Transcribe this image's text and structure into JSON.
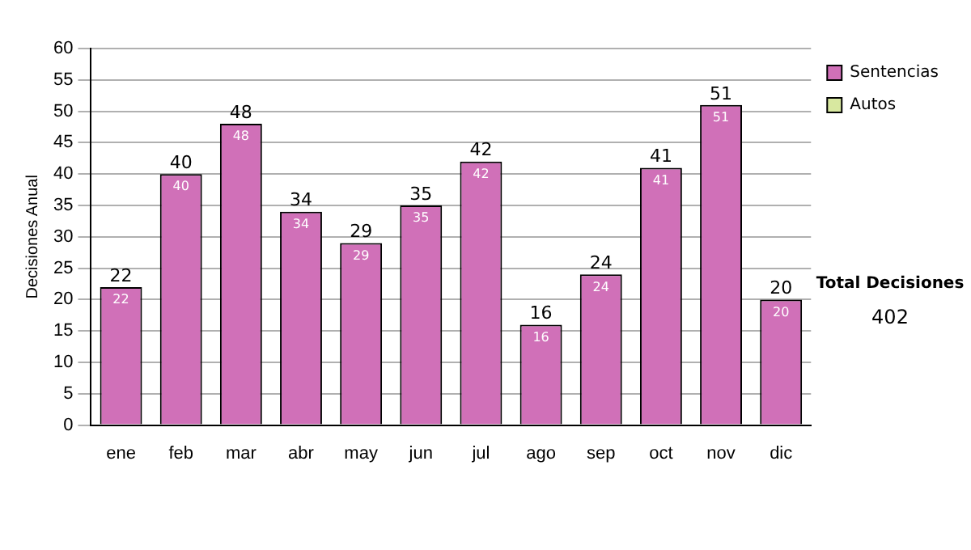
{
  "chart_data": {
    "type": "bar",
    "ylabel": "Decisiones Anual",
    "categories": [
      "ene",
      "feb",
      "mar",
      "abr",
      "may",
      "jun",
      "jul",
      "ago",
      "sep",
      "oct",
      "nov",
      "dic"
    ],
    "series": [
      {
        "name": "Sentencias",
        "color": "#d070b8",
        "values": [
          22,
          40,
          48,
          34,
          29,
          35,
          42,
          16,
          24,
          41,
          51,
          20
        ],
        "value_labels": [
          "22",
          "40",
          "48",
          "34",
          "29",
          "35",
          "42",
          "16",
          "24",
          "41",
          "51",
          "20"
        ]
      },
      {
        "name": "Autos",
        "color": "#d8e8a0",
        "values": [
          null,
          null,
          null,
          null,
          null,
          null,
          null,
          null,
          null,
          null,
          null,
          null
        ]
      }
    ],
    "ylim": [
      0,
      60
    ],
    "yticks": [
      0,
      5,
      10,
      15,
      20,
      25,
      30,
      35,
      40,
      45,
      50,
      55,
      60
    ],
    "grid": "y",
    "legend": "right",
    "annotations": [
      "Total Decisiones",
      "402",
      {
        "text": "22",
        "x": "ene",
        "y": 22
      },
      {
        "text": "40",
        "x": "feb",
        "y": 40
      },
      {
        "text": "48",
        "x": "mar",
        "y": 48
      },
      {
        "text": "34",
        "x": "abr",
        "y": 34
      },
      {
        "text": "29",
        "x": "may",
        "y": 29
      },
      {
        "text": "35",
        "x": "jun",
        "y": 35
      },
      {
        "text": "42",
        "x": "jul",
        "y": 42
      },
      {
        "text": "16",
        "x": "ago",
        "y": 16
      },
      {
        "text": "24",
        "x": "sep",
        "y": 24
      },
      {
        "text": "41",
        "x": "oct",
        "y": 41
      },
      {
        "text": "51",
        "x": "nov",
        "y": 51
      },
      {
        "text": "20",
        "x": "dic",
        "y": 20
      }
    ]
  }
}
